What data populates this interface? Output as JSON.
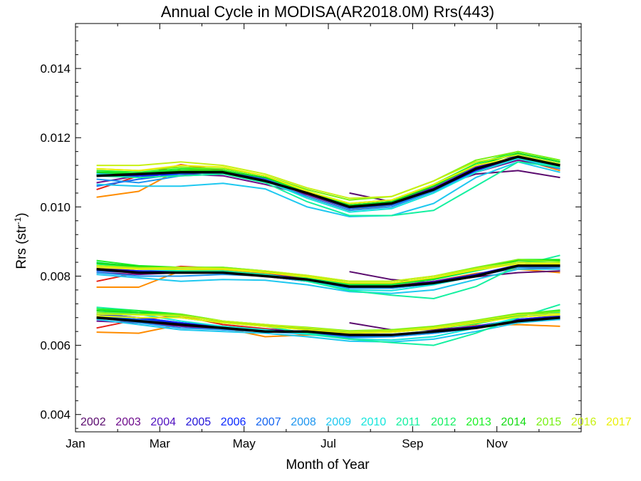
{
  "chart_data": {
    "type": "line",
    "title": "Annual Cycle in MODISA(AR2018.0M) Rrs(443)",
    "xlabel": "Month of Year",
    "ylabel": "Rrs (str",
    "ylabel_sup": "-1",
    "ylabel_close": ")",
    "xlim": [
      1,
      13
    ],
    "ylim": [
      0.0035,
      0.0153
    ],
    "xticks": [
      {
        "label": "Jan",
        "value": 1
      },
      {
        "label": "Mar",
        "value": 3
      },
      {
        "label": "May",
        "value": 5
      },
      {
        "label": "Jul",
        "value": 7
      },
      {
        "label": "Sep",
        "value": 9
      },
      {
        "label": "Nov",
        "value": 11
      }
    ],
    "yticks": [
      "0.004",
      "0.006",
      "0.008",
      "0.010",
      "0.012",
      "0.014"
    ],
    "ytick_values": [
      0.004,
      0.006,
      0.008,
      0.01,
      0.012,
      0.014
    ],
    "grid": false,
    "legend_position": "bottom",
    "x": [
      1.5,
      2.5,
      3.5,
      4.5,
      5.5,
      6.5,
      7.5,
      8.5,
      9.5,
      10.5,
      11.5,
      12.5
    ],
    "mean_series": {
      "color": "#000000",
      "upper": [
        0.0109,
        0.01095,
        0.011,
        0.011,
        0.01075,
        0.0104,
        0.01,
        0.0101,
        0.0105,
        0.0111,
        0.01145,
        0.0112
      ],
      "middle": [
        0.0082,
        0.0081,
        0.0081,
        0.0081,
        0.008,
        0.0079,
        0.0077,
        0.0077,
        0.0078,
        0.008,
        0.0083,
        0.0083
      ],
      "lower": [
        0.0068,
        0.0067,
        0.0066,
        0.0065,
        0.0064,
        0.0064,
        0.0063,
        0.0063,
        0.0064,
        0.0065,
        0.0067,
        0.0068
      ]
    },
    "series": [
      {
        "name": "2002",
        "color": "#5a0a6e",
        "upper": [
          null,
          null,
          null,
          null,
          null,
          null,
          0.0104,
          0.01015,
          0.01055,
          0.01095,
          0.01105,
          0.01085
        ],
        "middle": [
          null,
          null,
          null,
          null,
          null,
          null,
          0.00813,
          0.0079,
          0.0078,
          0.00798,
          0.0081,
          0.00815
        ],
        "lower": [
          null,
          null,
          null,
          null,
          null,
          null,
          0.00665,
          0.00645,
          0.00645,
          0.00655,
          0.00665,
          0.0068
        ]
      },
      {
        "name": "2003",
        "color": "#6e0c8c",
        "upper": [
          0.0107,
          0.0109,
          0.01095,
          0.0109,
          0.01065,
          0.01035,
          0.00995,
          0.01005,
          0.01045,
          0.011,
          0.01135,
          0.0111
        ],
        "middle": [
          0.0081,
          0.00805,
          0.0081,
          0.0081,
          0.008,
          0.00785,
          0.00765,
          0.0077,
          0.0078,
          0.008,
          0.00825,
          0.0082
        ],
        "lower": [
          0.0067,
          0.00665,
          0.00655,
          0.00645,
          0.0064,
          0.00635,
          0.00625,
          0.0063,
          0.0064,
          0.0065,
          0.0067,
          0.00675
        ]
      },
      {
        "name": "2004",
        "color": "#5010c0",
        "upper": [
          0.011,
          0.01085,
          0.011,
          0.01105,
          0.0108,
          0.01045,
          0.01005,
          0.01015,
          0.01055,
          0.01115,
          0.01145,
          0.0112
        ],
        "middle": [
          0.00825,
          0.00815,
          0.0081,
          0.00815,
          0.00805,
          0.0079,
          0.0077,
          0.0077,
          0.00785,
          0.00805,
          0.0083,
          0.0083
        ],
        "lower": [
          0.0069,
          0.0068,
          0.00665,
          0.00655,
          0.00645,
          0.0064,
          0.0063,
          0.0063,
          0.0064,
          0.00655,
          0.00675,
          0.00685
        ]
      },
      {
        "name": "2005",
        "color": "#2414d8",
        "upper": [
          0.01095,
          0.01095,
          0.011,
          0.011,
          0.01085,
          0.0104,
          0.01,
          0.0101,
          0.0105,
          0.0111,
          0.0115,
          0.01125
        ],
        "middle": [
          0.0082,
          0.00815,
          0.00815,
          0.0081,
          0.00805,
          0.0079,
          0.00768,
          0.00768,
          0.00782,
          0.00805,
          0.00832,
          0.00832
        ],
        "lower": [
          0.00685,
          0.00675,
          0.00665,
          0.0065,
          0.00645,
          0.00638,
          0.00628,
          0.0063,
          0.0064,
          0.00655,
          0.00675,
          0.00685
        ]
      },
      {
        "name": "2006",
        "color": "#0a28ff",
        "upper": [
          0.0109,
          0.0109,
          0.01095,
          0.011,
          0.01085,
          0.01045,
          0.01005,
          0.0101,
          0.01045,
          0.01105,
          0.01145,
          0.0112
        ],
        "middle": [
          0.0082,
          0.00815,
          0.0081,
          0.0081,
          0.00805,
          0.0079,
          0.0077,
          0.00768,
          0.0078,
          0.00802,
          0.00828,
          0.0083
        ],
        "lower": [
          0.0069,
          0.0068,
          0.00665,
          0.0065,
          0.0064,
          0.00635,
          0.00625,
          0.00628,
          0.00638,
          0.00652,
          0.00672,
          0.00682
        ]
      },
      {
        "name": "2007",
        "color": "#1464f0",
        "upper": [
          0.0106,
          0.0108,
          0.01095,
          0.011,
          0.0108,
          0.0104,
          0.00995,
          0.01005,
          0.01045,
          0.011,
          0.0114,
          0.01115
        ],
        "middle": [
          0.00815,
          0.0081,
          0.0081,
          0.0081,
          0.008,
          0.00785,
          0.00765,
          0.00765,
          0.00778,
          0.008,
          0.00825,
          0.00828
        ],
        "lower": [
          0.00685,
          0.00675,
          0.0066,
          0.0065,
          0.0064,
          0.00635,
          0.00625,
          0.00625,
          0.00635,
          0.0065,
          0.0067,
          0.00682
        ]
      },
      {
        "name": "2008",
        "color": "#1e96f0",
        "upper": [
          0.0108,
          0.0107,
          0.0109,
          0.01095,
          0.01075,
          0.0103,
          0.0099,
          0.01,
          0.01045,
          0.011,
          0.0114,
          0.0111
        ],
        "middle": [
          0.0081,
          0.008,
          0.008,
          0.00805,
          0.008,
          0.00785,
          0.00765,
          0.00765,
          0.00778,
          0.008,
          0.00825,
          0.00825
        ],
        "lower": [
          0.0068,
          0.00665,
          0.0065,
          0.00645,
          0.0064,
          0.00632,
          0.00622,
          0.00625,
          0.00635,
          0.0065,
          0.0067,
          0.00678
        ]
      },
      {
        "name": "2009",
        "color": "#1ec8f0",
        "upper": [
          0.01065,
          0.0106,
          0.0106,
          0.01068,
          0.01052,
          0.01,
          0.00972,
          0.00975,
          0.0101,
          0.01085,
          0.0113,
          0.011
        ],
        "middle": [
          0.00805,
          0.00795,
          0.00785,
          0.0079,
          0.00788,
          0.00775,
          0.00755,
          0.0075,
          0.0076,
          0.0079,
          0.0082,
          0.0082
        ],
        "lower": [
          0.00675,
          0.0066,
          0.00645,
          0.0064,
          0.00635,
          0.00625,
          0.00612,
          0.0061,
          0.00618,
          0.0064,
          0.00665,
          0.00675
        ]
      },
      {
        "name": "2010",
        "color": "#14e6dc",
        "upper": [
          0.01095,
          0.01095,
          0.011,
          0.01095,
          0.01075,
          0.01025,
          0.00985,
          0.00995,
          0.0104,
          0.011,
          0.0114,
          0.01115
        ],
        "middle": [
          0.0083,
          0.0082,
          0.00815,
          0.0081,
          0.00805,
          0.00788,
          0.0076,
          0.00758,
          0.00775,
          0.008,
          0.00828,
          0.00835
        ],
        "lower": [
          0.007,
          0.0069,
          0.0067,
          0.00655,
          0.00645,
          0.00632,
          0.00618,
          0.00615,
          0.00625,
          0.0065,
          0.0068,
          0.00695
        ]
      },
      {
        "name": "2011",
        "color": "#14f0a0",
        "upper": [
          0.0109,
          0.01085,
          0.0109,
          0.01095,
          0.0107,
          0.01015,
          0.00975,
          0.00975,
          0.0099,
          0.0106,
          0.0113,
          0.01115
        ],
        "middle": [
          0.0084,
          0.00825,
          0.00815,
          0.00815,
          0.00805,
          0.00785,
          0.00758,
          0.00745,
          0.00735,
          0.0077,
          0.0083,
          0.0086
        ],
        "lower": [
          0.0071,
          0.007,
          0.0068,
          0.00665,
          0.00655,
          0.00635,
          0.00618,
          0.00608,
          0.006,
          0.00635,
          0.0068,
          0.00718
        ]
      },
      {
        "name": "2012",
        "color": "#14f064",
        "upper": [
          0.011,
          0.011,
          0.01105,
          0.01105,
          0.01085,
          0.0104,
          0.01005,
          0.01015,
          0.0106,
          0.0112,
          0.01155,
          0.0113
        ],
        "middle": [
          0.00835,
          0.00825,
          0.0082,
          0.0082,
          0.00812,
          0.00795,
          0.00775,
          0.00775,
          0.0079,
          0.00815,
          0.0084,
          0.00845
        ],
        "lower": [
          0.00705,
          0.00695,
          0.0068,
          0.00665,
          0.00655,
          0.00645,
          0.00635,
          0.00638,
          0.00648,
          0.00662,
          0.00685,
          0.007
        ]
      },
      {
        "name": "2013",
        "color": "#1ef028",
        "upper": [
          0.01105,
          0.011,
          0.0111,
          0.0111,
          0.0109,
          0.01045,
          0.0101,
          0.0102,
          0.01065,
          0.01125,
          0.0116,
          0.01135
        ],
        "middle": [
          0.00845,
          0.0083,
          0.00825,
          0.00825,
          0.00815,
          0.008,
          0.0078,
          0.0078,
          0.00795,
          0.0082,
          0.00848,
          0.00848
        ],
        "lower": [
          0.00705,
          0.007,
          0.0069,
          0.0067,
          0.0066,
          0.0065,
          0.0064,
          0.0064,
          0.0065,
          0.00668,
          0.0069,
          0.00702
        ]
      },
      {
        "name": "2014",
        "color": "#14dc14",
        "upper": [
          0.011,
          0.01095,
          0.01105,
          0.01105,
          0.01085,
          0.01045,
          0.01005,
          0.01015,
          0.0106,
          0.0112,
          0.01155,
          0.0113
        ],
        "middle": [
          0.00838,
          0.00828,
          0.00825,
          0.00822,
          0.00812,
          0.00798,
          0.00778,
          0.00778,
          0.00792,
          0.00818,
          0.00845,
          0.00845
        ],
        "lower": [
          0.007,
          0.00695,
          0.00688,
          0.00668,
          0.00658,
          0.00648,
          0.00638,
          0.00638,
          0.00648,
          0.00665,
          0.00688,
          0.00698
        ]
      },
      {
        "name": "2015",
        "color": "#78f014",
        "upper": [
          0.0111,
          0.01105,
          0.01115,
          0.0111,
          0.0109,
          0.0105,
          0.0102,
          0.0103,
          0.01075,
          0.01135,
          0.0116,
          0.01135
        ],
        "middle": [
          0.0083,
          0.00825,
          0.00825,
          0.00825,
          0.00815,
          0.00802,
          0.00785,
          0.00785,
          0.008,
          0.00825,
          0.00848,
          0.00842
        ],
        "lower": [
          0.00695,
          0.0069,
          0.0069,
          0.0067,
          0.0066,
          0.00652,
          0.00642,
          0.00645,
          0.00655,
          0.00672,
          0.00692,
          0.00698
        ]
      },
      {
        "name": "2016",
        "color": "#c8f014",
        "upper": [
          0.0112,
          0.0112,
          0.0113,
          0.0112,
          0.01095,
          0.01055,
          0.01025,
          0.0103,
          0.01075,
          0.0113,
          0.0115,
          0.01125
        ],
        "middle": [
          0.0083,
          0.00822,
          0.00825,
          0.00822,
          0.00815,
          0.00802,
          0.00785,
          0.00785,
          0.008,
          0.00822,
          0.0084,
          0.00838
        ],
        "lower": [
          0.0069,
          0.00688,
          0.00685,
          0.0067,
          0.0066,
          0.0065,
          0.0064,
          0.00642,
          0.00652,
          0.0067,
          0.00688,
          0.00692
        ]
      },
      {
        "name": "2017",
        "color": "#ebf00a",
        "upper": [
          0.0111,
          0.01105,
          0.0112,
          0.01115,
          0.0109,
          0.01045,
          0.0101,
          0.0102,
          0.01065,
          0.0112,
          0.01145,
          0.0112
        ],
        "middle": [
          0.00825,
          0.0082,
          0.0082,
          0.0082,
          0.0081,
          0.00798,
          0.0078,
          0.0078,
          0.00795,
          0.00818,
          0.00835,
          0.00835
        ],
        "lower": [
          0.00685,
          0.0068,
          0.0068,
          0.00665,
          0.00655,
          0.00645,
          0.00635,
          0.00638,
          0.00648,
          0.00665,
          0.00682,
          0.00688
        ]
      }
    ],
    "extra_series": [
      {
        "color": "#ff8c00",
        "upper": [
          0.01028,
          0.01045,
          0.0111,
          0.01105,
          0.01075,
          0.0103,
          0.0099,
          0.01005,
          0.0105,
          0.0111,
          0.0114,
          0.01105
        ],
        "middle": [
          0.00768,
          0.00768,
          0.00815,
          0.00818,
          0.00805,
          0.0079,
          0.0077,
          0.0077,
          0.00785,
          0.00808,
          0.0082,
          0.0081
        ],
        "lower": [
          0.00638,
          0.00635,
          0.0066,
          0.0065,
          0.00625,
          0.0063,
          0.00625,
          0.00628,
          0.0064,
          0.00658,
          0.0066,
          0.00655
        ]
      },
      {
        "color": "#e61e14",
        "upper": [
          0.0105,
          0.0109,
          0.01122,
          0.01105,
          0.0108,
          0.0104,
          0.01,
          0.0101,
          0.0105,
          0.01105,
          0.0114,
          0.01115
        ],
        "middle": [
          0.00785,
          0.0081,
          0.00828,
          0.00822,
          0.00808,
          0.00792,
          0.00772,
          0.00772,
          0.00785,
          0.00805,
          0.00828,
          0.00828
        ],
        "lower": [
          0.0065,
          0.00675,
          0.00685,
          0.0066,
          0.00648,
          0.00638,
          0.00628,
          0.0063,
          0.0064,
          0.00655,
          0.00672,
          0.0068
        ]
      }
    ]
  }
}
